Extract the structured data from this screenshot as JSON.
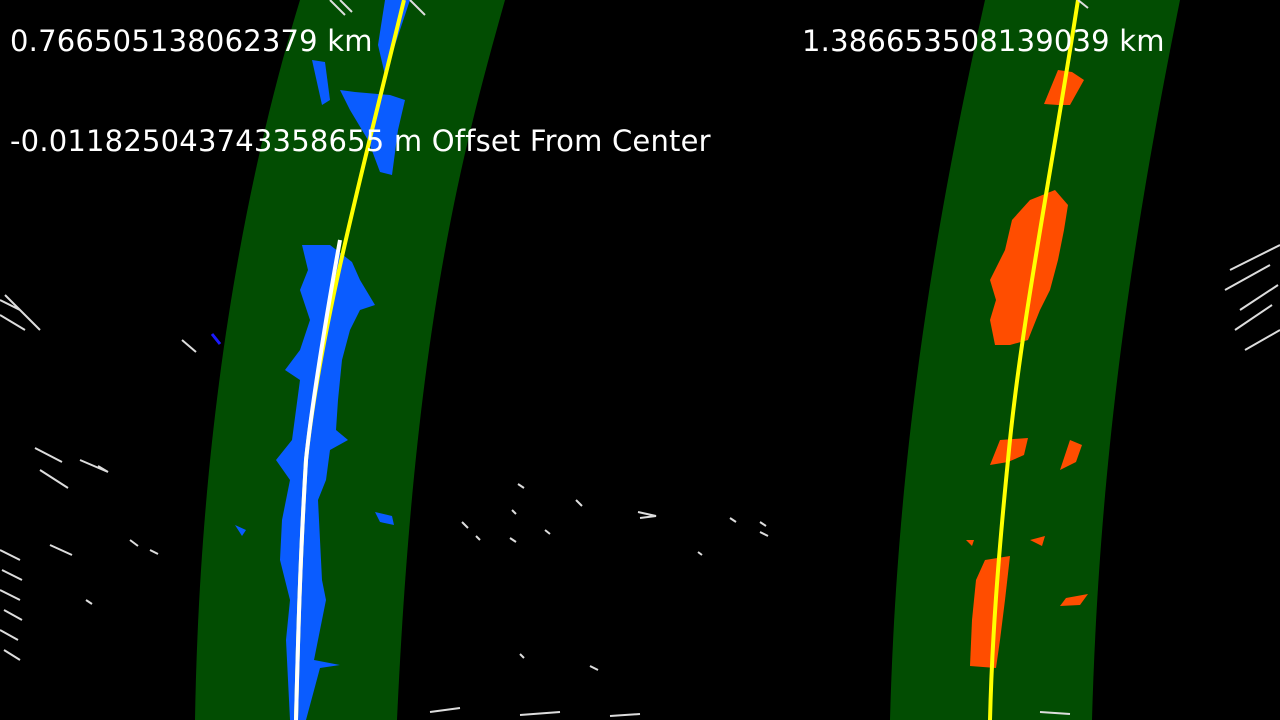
{
  "overlay": {
    "left_curvature": "0.766505138062379 km",
    "right_curvature": "1.386653508139039 km",
    "center_offset": "-0.011825043743358655 m Offset From Center"
  },
  "colors": {
    "background": "#000000",
    "lane_band": "#024d02",
    "left_lane_pixels": "#0a5cff",
    "right_lane_pixels": "#ff4d00",
    "left_fit_line": "#ffffff",
    "right_fit_line": "#ffff00",
    "noise_edges": "#dddddd",
    "overlay_text": "#ffffff"
  }
}
